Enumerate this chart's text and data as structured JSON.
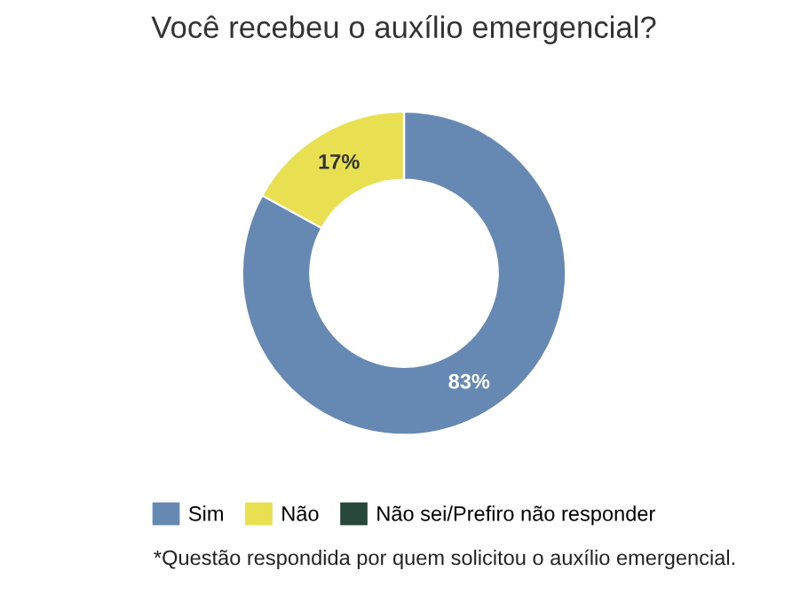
{
  "chart_data": {
    "type": "donut",
    "title": "Você recebeu o auxílio emergencial?",
    "categories": [
      "Sim",
      "Não",
      "Não sei/Prefiro não responder"
    ],
    "values": [
      83,
      17,
      0
    ],
    "colors": [
      "#6589b3",
      "#e8e050",
      "#26473a"
    ],
    "value_labels": [
      "83%",
      "17%",
      null
    ],
    "legend": "bottom",
    "annotations": [
      "*Questão respondida por quem solicitou o auxílio emergencial."
    ]
  }
}
